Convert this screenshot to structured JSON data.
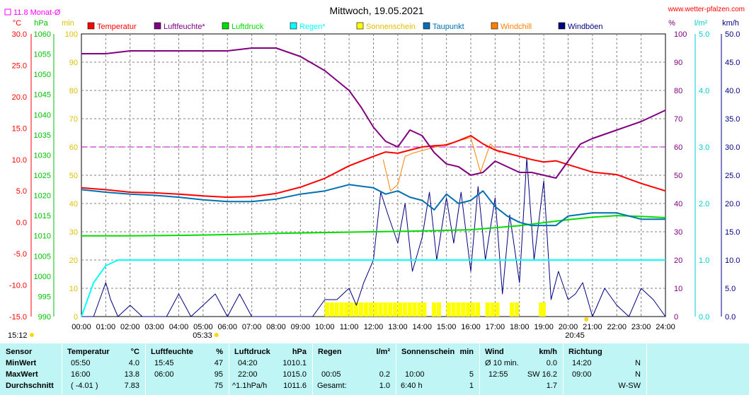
{
  "chart_data": {
    "type": "line",
    "title": "Mittwoch, 19.05.2021",
    "source": "www.wetter-pfalzen.com",
    "monthly_avg_label": "11.8 Monat-Ø",
    "monthly_avg_temp": 11.8,
    "axes": {
      "temp": {
        "unit": "°C",
        "range": [
          -15,
          30
        ],
        "ticks": [
          "30.0",
          "25.0",
          "20.0",
          "15.0",
          "10.0",
          "5.0",
          "0.0",
          "-5.0",
          "-10.0",
          "-15.0"
        ],
        "color": "#ff0000"
      },
      "pressure": {
        "unit": "hPa",
        "range": [
          990,
          1060
        ],
        "ticks": [
          "1060",
          "1055",
          "1050",
          "1045",
          "1040",
          "1035",
          "1030",
          "1025",
          "1020",
          "1015",
          "1010",
          "1005",
          "1000",
          "995",
          "990"
        ],
        "color": "#00c000"
      },
      "sun": {
        "unit": "min",
        "range": [
          0,
          100
        ],
        "ticks": [
          "100",
          "90",
          "80",
          "70",
          "60",
          "50",
          "40",
          "30",
          "20",
          "10",
          "0"
        ],
        "color": "#e0e000"
      },
      "humidity": {
        "unit": "%",
        "range": [
          0,
          100
        ],
        "ticks": [
          "100",
          "90",
          "80",
          "70",
          "60",
          "50",
          "40",
          "30",
          "20",
          "10",
          "0"
        ],
        "color": "#800080"
      },
      "rain": {
        "unit": "l/m²",
        "range": [
          0,
          5
        ],
        "ticks": [
          "5.0",
          "4.0",
          "3.0",
          "2.0",
          "1.0",
          "0.0"
        ],
        "color": "#00cccc"
      },
      "wind": {
        "unit": "km/h",
        "range": [
          0,
          50
        ],
        "ticks": [
          "50.0",
          "45.0",
          "40.0",
          "35.0",
          "30.0",
          "25.0",
          "20.0",
          "15.0",
          "10.0",
          "5.0",
          "0.0"
        ],
        "color": "#000080"
      }
    },
    "x_ticks": [
      "00:00",
      "01:00",
      "02:00",
      "03:00",
      "04:00",
      "05:00",
      "06:00",
      "07:00",
      "08:00",
      "09:00",
      "10:00",
      "11:00",
      "12:00",
      "13:00",
      "14:00",
      "15:00",
      "16:00",
      "17:00",
      "18:00",
      "19:00",
      "20:00",
      "21:00",
      "22:00",
      "23:00",
      "24:00"
    ],
    "x_range": [
      0,
      24
    ],
    "sunrise": "05:33",
    "sunset": "20:45",
    "sunrise_h": 5.55,
    "sunset_h": 20.75,
    "clock": "15:12",
    "legend": [
      {
        "name": "Temperatur",
        "color": "#ff0000"
      },
      {
        "name": "Luftfeuchte*",
        "color": "#800080"
      },
      {
        "name": "Luftdruck",
        "color": "#00dd00"
      },
      {
        "name": "Regen*",
        "color": "#00ffff"
      },
      {
        "name": "Sonnenschein",
        "color": "#ffff00"
      },
      {
        "name": "Taupunkt",
        "color": "#0070b0"
      },
      {
        "name": "Windchill",
        "color": "#ff8000"
      },
      {
        "name": "Windböen",
        "color": "#000080"
      }
    ],
    "series": {
      "temperature": {
        "axis": "temp",
        "x": [
          0,
          1,
          2,
          3,
          4,
          5,
          6,
          7,
          8,
          9,
          10,
          11,
          12,
          12.5,
          13,
          13.5,
          14,
          14.5,
          15,
          15.5,
          16,
          16.5,
          17,
          17.5,
          18,
          18.5,
          19,
          19.5,
          20,
          21,
          22,
          23,
          24
        ],
        "y": [
          5.5,
          5.2,
          4.8,
          4.7,
          4.5,
          4.2,
          4.0,
          4.1,
          4.6,
          5.6,
          7.0,
          9.0,
          10.5,
          11.2,
          11.0,
          11.5,
          12.0,
          12.2,
          12.3,
          13.0,
          13.8,
          12.5,
          11.5,
          11.0,
          10.5,
          10.0,
          9.6,
          9.8,
          9.2,
          8.0,
          7.6,
          6.2,
          5.0
        ]
      },
      "humidity": {
        "axis": "humidity",
        "x": [
          0,
          1,
          2,
          3,
          4,
          5,
          6,
          7,
          7.5,
          8,
          9,
          10,
          11,
          11.5,
          12,
          12.5,
          13,
          13.5,
          14,
          14.5,
          15,
          15.5,
          16,
          16.5,
          17,
          17.5,
          18,
          18.5,
          19,
          19.5,
          20,
          20.5,
          21,
          22,
          23,
          24
        ],
        "y": [
          93,
          93,
          94,
          94,
          94,
          94,
          94,
          95,
          95,
          95,
          92,
          87,
          80,
          74,
          67,
          62,
          60,
          66,
          64,
          58,
          54,
          53,
          50,
          51,
          55,
          53,
          51,
          51,
          50,
          49,
          55,
          61,
          63,
          66,
          69,
          73
        ]
      },
      "pressure": {
        "axis": "pressure",
        "x": [
          0,
          2,
          4,
          6,
          8,
          10,
          12,
          14,
          16,
          18,
          20,
          21,
          22,
          23,
          24
        ],
        "y": [
          1010.0,
          1010.0,
          1010.1,
          1010.3,
          1010.6,
          1010.8,
          1011.0,
          1011.2,
          1011.5,
          1012.5,
          1014.0,
          1014.6,
          1015.0,
          1014.8,
          1014.5
        ]
      },
      "rain": {
        "axis": "rain",
        "x": [
          0,
          0.5,
          1,
          1.5,
          2,
          24
        ],
        "y": [
          0,
          0.6,
          0.9,
          1.0,
          1.0,
          1.0
        ]
      },
      "dewpoint": {
        "axis": "temp",
        "x": [
          0,
          1,
          2,
          3,
          4,
          5,
          6,
          7,
          8,
          9,
          10,
          11,
          12,
          12.5,
          13,
          13.5,
          14,
          14.5,
          15,
          15.5,
          16,
          16.5,
          17,
          17.5,
          18,
          18.5,
          19,
          19.5,
          20,
          21,
          22,
          23,
          24
        ],
        "y": [
          5.2,
          4.8,
          4.5,
          4.3,
          4.0,
          3.6,
          3.3,
          3.3,
          3.7,
          4.5,
          5.0,
          6.0,
          5.5,
          4.5,
          5.0,
          4.0,
          3.5,
          2.0,
          4.5,
          3.0,
          3.5,
          5.0,
          2.5,
          1.0,
          0.0,
          -0.5,
          -0.5,
          -0.5,
          1.0,
          1.5,
          1.5,
          0.5,
          0.5
        ]
      },
      "windchill": {
        "axis": "temp",
        "x": [
          12.4,
          12.7,
          13.0,
          13.3,
          13.6,
          16.0,
          16.4,
          16.8,
          17.2
        ],
        "y": [
          10.0,
          5.0,
          6.0,
          10.5,
          11.0,
          13.5,
          8.0,
          12.5,
          11.0
        ]
      },
      "gusts": {
        "axis": "wind",
        "x": [
          0,
          0.5,
          1,
          1.2,
          1.5,
          2,
          2.5,
          3,
          3.5,
          4,
          4.5,
          5,
          5.5,
          6,
          6.5,
          7,
          7.5,
          8,
          8.5,
          9,
          9.5,
          10,
          10.5,
          11,
          11.3,
          11.6,
          12,
          12.3,
          12.6,
          13,
          13.3,
          13.6,
          14,
          14.3,
          14.6,
          15,
          15.3,
          15.6,
          16,
          16.3,
          16.6,
          17,
          17.3,
          17.6,
          18,
          18.3,
          18.6,
          19,
          19.3,
          19.6,
          20,
          20.3,
          20.6,
          21,
          21.5,
          22,
          22.5,
          23,
          23.5,
          24
        ],
        "y": [
          0,
          0,
          6,
          3,
          0,
          2,
          0,
          0,
          0,
          4,
          0,
          2,
          4,
          0,
          4,
          0,
          0,
          0,
          0,
          0,
          0,
          3,
          3,
          5,
          2,
          6,
          10,
          22,
          18,
          13,
          20,
          8,
          14,
          22,
          10,
          21,
          13,
          22,
          8,
          23,
          10,
          21,
          4,
          18,
          6,
          28,
          10,
          24,
          3,
          8,
          3,
          4,
          6,
          0,
          5,
          2,
          0,
          5,
          3,
          0
        ]
      },
      "sunshine": {
        "axis": "sun",
        "x": [
          10.0,
          10.2,
          10.4,
          10.6,
          10.8,
          11.0,
          11.2,
          11.4,
          11.6,
          11.8,
          12.0,
          12.2,
          12.4,
          12.6,
          12.8,
          13.0,
          13.2,
          13.4,
          13.6,
          13.8,
          14.0,
          14.4,
          14.6,
          15.0,
          15.2,
          15.4,
          15.6,
          15.8,
          16.0,
          16.2,
          16.6,
          16.8,
          17.0,
          17.6,
          17.8,
          18.8,
          18.9
        ],
        "y": [
          5,
          5,
          5,
          5,
          5,
          5,
          5,
          5,
          5,
          5,
          5,
          5,
          5,
          5,
          5,
          5,
          5,
          5,
          5,
          5,
          5,
          5,
          5,
          5,
          5,
          5,
          5,
          5,
          5,
          5,
          5,
          5,
          5,
          5,
          5,
          5,
          5
        ]
      }
    },
    "reference_line": {
      "axis": "humidity",
      "value": 60,
      "color": "#c000c0"
    }
  },
  "stats": {
    "row_labels": [
      "Sensor",
      "MinWert",
      "MaxWert",
      "Durchschnitt"
    ],
    "columns": [
      {
        "header": "Temperatur",
        "unit": "°C",
        "rows": [
          [
            "05:50",
            "4.0"
          ],
          [
            "16:00",
            "13.8"
          ],
          [
            "( -4.01 )",
            "7.83"
          ]
        ]
      },
      {
        "header": "Luftfeuchte",
        "unit": "%",
        "rows": [
          [
            "15:45",
            "47"
          ],
          [
            "06:00",
            "95"
          ],
          [
            "",
            "75"
          ]
        ]
      },
      {
        "header": "Luftdruck",
        "unit": "hPa",
        "rows": [
          [
            "04:20",
            "1010.1"
          ],
          [
            "22:00",
            "1015.0"
          ],
          [
            "^1.1hPa/h",
            "1011.6"
          ]
        ]
      },
      {
        "header": "Regen",
        "unit": "l/m²",
        "rows": [
          [
            "",
            ""
          ],
          [
            "00:05",
            "0.2"
          ],
          [
            "Gesamt:",
            "1.0"
          ]
        ]
      },
      {
        "header": "Sonnenschein",
        "unit": "min",
        "rows": [
          [
            "",
            ""
          ],
          [
            "10:00",
            "5"
          ],
          [
            "6:40 h",
            "1"
          ]
        ]
      },
      {
        "header": "Wind",
        "unit": "km/h",
        "rows": [
          [
            "Ø 10 min.",
            "0.0"
          ],
          [
            "12:55",
            "SW 16.2"
          ],
          [
            "",
            "1.7"
          ]
        ]
      },
      {
        "header": "Richtung",
        "unit": "",
        "rows": [
          [
            "14:20",
            "N"
          ],
          [
            "09:00",
            "N"
          ],
          [
            "",
            "W-SW"
          ]
        ]
      }
    ]
  }
}
